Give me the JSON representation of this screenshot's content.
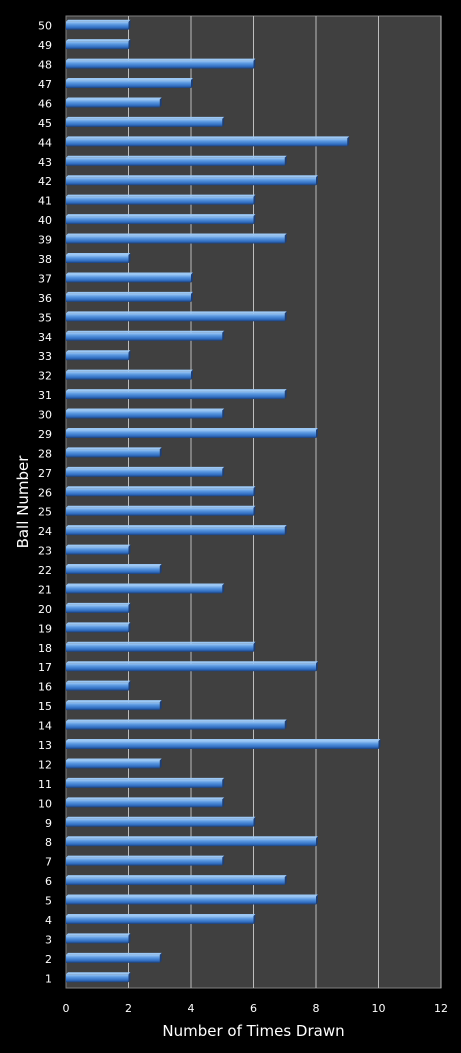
{
  "chart_data": {
    "type": "bar",
    "orientation": "horizontal",
    "title": "",
    "xlabel": "Number of Times Drawn",
    "ylabel": "Ball Number",
    "xlim": [
      0,
      12
    ],
    "x_ticks": [
      0,
      2,
      4,
      6,
      8,
      10,
      12
    ],
    "grid": "vertical",
    "legend": "none",
    "colors": {
      "background": "#000000",
      "plot_area": "#404040",
      "gridline": "#bdbdbd",
      "bar": "#3f7fd0",
      "bar_highlight": "#9cc8f5",
      "bar_shadow": "#1c3f78",
      "text": "#ffffff"
    },
    "categories": [
      "1",
      "2",
      "3",
      "4",
      "5",
      "6",
      "7",
      "8",
      "9",
      "10",
      "11",
      "12",
      "13",
      "14",
      "15",
      "16",
      "17",
      "18",
      "19",
      "20",
      "21",
      "22",
      "23",
      "24",
      "25",
      "26",
      "27",
      "28",
      "29",
      "30",
      "31",
      "32",
      "33",
      "34",
      "35",
      "36",
      "37",
      "38",
      "39",
      "40",
      "41",
      "42",
      "43",
      "44",
      "45",
      "46",
      "47",
      "48",
      "49",
      "50"
    ],
    "values": [
      2,
      3,
      2,
      6,
      8,
      7,
      5,
      8,
      6,
      5,
      5,
      3,
      10,
      7,
      3,
      2,
      8,
      6,
      2,
      2,
      5,
      3,
      2,
      7,
      6,
      6,
      5,
      3,
      8,
      5,
      7,
      4,
      2,
      5,
      7,
      4,
      4,
      2,
      7,
      6,
      6,
      8,
      7,
      9,
      5,
      3,
      4,
      6,
      2,
      2
    ]
  }
}
